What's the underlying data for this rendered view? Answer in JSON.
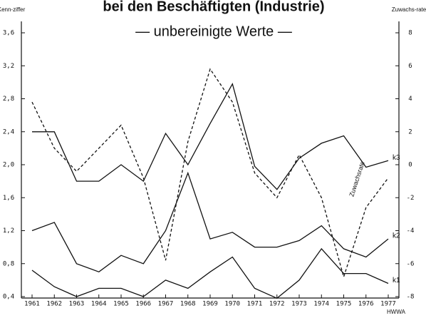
{
  "chart_data": {
    "type": "line",
    "title": "bei den Beschäftigten (Industrie)",
    "subtitle": "— unbereinigte Werte —",
    "y_label": "Kenn-ziffer",
    "y2_label": "Zuwachs-rate",
    "source": "HWWA",
    "categories": [
      "1961",
      "1962",
      "1963",
      "1964",
      "1965",
      "1966",
      "1967",
      "1968",
      "1969",
      "1970",
      "1971",
      "1972",
      "1973",
      "1974",
      "1975",
      "1976",
      "1977"
    ],
    "ylim": [
      0.4,
      3.6
    ],
    "yticks": [
      {
        "value": 0.4,
        "label": "0,4"
      },
      {
        "value": 0.8,
        "label": "0,8"
      },
      {
        "value": 1.2,
        "label": "1,2"
      },
      {
        "value": 1.6,
        "label": "1,6"
      },
      {
        "value": 2.0,
        "label": "2,0"
      },
      {
        "value": 2.4,
        "label": "2,4"
      },
      {
        "value": 2.8,
        "label": "2,8"
      },
      {
        "value": 3.2,
        "label": "3,2"
      },
      {
        "value": 3.6,
        "label": "3,6"
      }
    ],
    "y2lim": [
      -8,
      8
    ],
    "y2ticks": [
      -8,
      -6,
      -4,
      -2,
      0,
      2,
      4,
      6,
      8
    ],
    "series": [
      {
        "name": "k3",
        "color": "#111",
        "dashed": false,
        "values": [
          2.4,
          2.4,
          1.8,
          1.8,
          2.0,
          1.8,
          2.38,
          2.0,
          2.5,
          2.98,
          1.98,
          1.7,
          2.08,
          2.26,
          2.35,
          1.97,
          2.05
        ]
      },
      {
        "name": "k2",
        "color": "#111",
        "dashed": false,
        "values": [
          1.2,
          1.3,
          0.8,
          0.7,
          0.9,
          0.8,
          1.2,
          1.9,
          1.1,
          1.18,
          1.0,
          1.0,
          1.08,
          1.26,
          0.98,
          0.88,
          1.1
        ]
      },
      {
        "name": "k1",
        "color": "#111",
        "dashed": false,
        "values": [
          0.72,
          0.52,
          0.4,
          0.5,
          0.5,
          0.4,
          0.6,
          0.5,
          0.7,
          0.88,
          0.5,
          0.38,
          0.6,
          0.98,
          0.68,
          0.68,
          0.56
        ]
      },
      {
        "name": "Zuwachsrate",
        "color": "#111",
        "dashed": true,
        "axis": "y2",
        "values": [
          3.8,
          1.0,
          -0.4,
          1.0,
          2.4,
          -0.8,
          -5.8,
          1.4,
          5.8,
          3.8,
          -0.5,
          -2.0,
          0.6,
          -2.0,
          -6.8,
          -2.6,
          -0.8
        ]
      }
    ]
  }
}
